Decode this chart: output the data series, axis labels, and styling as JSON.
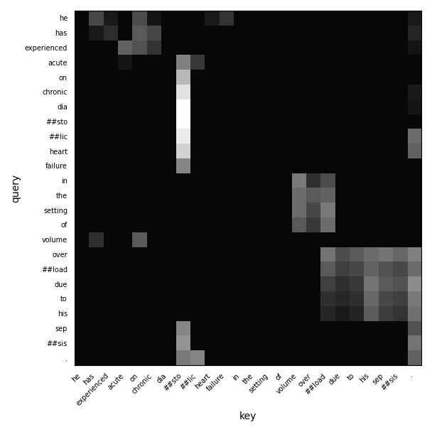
{
  "query_labels": [
    "he",
    "has",
    "experienced",
    "acute",
    "on",
    "chronic",
    "dia",
    "##sto",
    "##lic",
    "heart",
    "failure",
    "in",
    "the",
    "setting",
    "of",
    "volume",
    "over",
    "##load",
    "due",
    "to",
    "his",
    "sep",
    "##sis",
    "."
  ],
  "key_labels": [
    "he",
    "has",
    "experienced",
    "acute",
    "on",
    "chronic",
    "dia",
    "##sto",
    "##lic",
    "heart",
    "failure",
    "in",
    "the",
    "setting",
    "of",
    "volume",
    "over",
    "##load",
    "due",
    "to",
    "his",
    "sep",
    "##sis",
    "."
  ],
  "attention_matrix": [
    [
      0.03,
      0.28,
      0.1,
      0.03,
      0.3,
      0.08,
      0.03,
      0.03,
      0.03,
      0.1,
      0.2,
      0.03,
      0.03,
      0.03,
      0.03,
      0.03,
      0.03,
      0.03,
      0.03,
      0.03,
      0.03,
      0.03,
      0.03,
      0.1
    ],
    [
      0.03,
      0.1,
      0.18,
      0.03,
      0.35,
      0.28,
      0.03,
      0.03,
      0.03,
      0.03,
      0.03,
      0.03,
      0.03,
      0.03,
      0.03,
      0.03,
      0.03,
      0.03,
      0.03,
      0.03,
      0.03,
      0.03,
      0.03,
      0.15
    ],
    [
      0.03,
      0.03,
      0.03,
      0.38,
      0.32,
      0.2,
      0.03,
      0.03,
      0.03,
      0.03,
      0.03,
      0.03,
      0.03,
      0.03,
      0.03,
      0.03,
      0.03,
      0.03,
      0.03,
      0.03,
      0.03,
      0.03,
      0.03,
      0.08
    ],
    [
      0.03,
      0.03,
      0.03,
      0.08,
      0.03,
      0.03,
      0.03,
      0.5,
      0.22,
      0.03,
      0.03,
      0.03,
      0.03,
      0.03,
      0.03,
      0.03,
      0.03,
      0.03,
      0.03,
      0.03,
      0.03,
      0.03,
      0.03,
      0.03
    ],
    [
      0.03,
      0.03,
      0.03,
      0.03,
      0.03,
      0.03,
      0.03,
      0.72,
      0.03,
      0.03,
      0.03,
      0.03,
      0.03,
      0.03,
      0.03,
      0.03,
      0.03,
      0.03,
      0.03,
      0.03,
      0.03,
      0.03,
      0.03,
      0.03
    ],
    [
      0.03,
      0.03,
      0.03,
      0.03,
      0.03,
      0.03,
      0.03,
      0.88,
      0.03,
      0.03,
      0.03,
      0.03,
      0.03,
      0.03,
      0.03,
      0.03,
      0.03,
      0.03,
      0.03,
      0.03,
      0.03,
      0.03,
      0.03,
      0.1
    ],
    [
      0.03,
      0.03,
      0.03,
      0.03,
      0.03,
      0.03,
      0.03,
      1.0,
      0.03,
      0.03,
      0.03,
      0.03,
      0.03,
      0.03,
      0.03,
      0.03,
      0.03,
      0.03,
      0.03,
      0.03,
      0.03,
      0.03,
      0.03,
      0.08
    ],
    [
      0.03,
      0.03,
      0.03,
      0.03,
      0.03,
      0.03,
      0.03,
      1.0,
      0.03,
      0.03,
      0.03,
      0.03,
      0.03,
      0.03,
      0.03,
      0.03,
      0.03,
      0.03,
      0.03,
      0.03,
      0.03,
      0.03,
      0.03,
      0.03
    ],
    [
      0.03,
      0.03,
      0.03,
      0.03,
      0.03,
      0.03,
      0.03,
      0.92,
      0.03,
      0.03,
      0.03,
      0.03,
      0.03,
      0.03,
      0.03,
      0.03,
      0.03,
      0.03,
      0.03,
      0.03,
      0.03,
      0.03,
      0.03,
      0.42
    ],
    [
      0.03,
      0.03,
      0.03,
      0.03,
      0.03,
      0.03,
      0.03,
      0.82,
      0.03,
      0.03,
      0.03,
      0.03,
      0.03,
      0.03,
      0.03,
      0.03,
      0.03,
      0.03,
      0.03,
      0.03,
      0.03,
      0.03,
      0.03,
      0.38
    ],
    [
      0.03,
      0.03,
      0.03,
      0.03,
      0.03,
      0.03,
      0.03,
      0.52,
      0.03,
      0.03,
      0.03,
      0.03,
      0.03,
      0.03,
      0.03,
      0.03,
      0.03,
      0.03,
      0.03,
      0.03,
      0.03,
      0.03,
      0.03,
      0.03
    ],
    [
      0.03,
      0.03,
      0.03,
      0.03,
      0.03,
      0.03,
      0.03,
      0.03,
      0.03,
      0.03,
      0.03,
      0.03,
      0.03,
      0.03,
      0.03,
      0.48,
      0.18,
      0.3,
      0.03,
      0.03,
      0.03,
      0.03,
      0.03,
      0.03
    ],
    [
      0.03,
      0.03,
      0.03,
      0.03,
      0.03,
      0.03,
      0.03,
      0.03,
      0.03,
      0.03,
      0.03,
      0.03,
      0.03,
      0.03,
      0.03,
      0.42,
      0.35,
      0.38,
      0.03,
      0.03,
      0.03,
      0.03,
      0.03,
      0.03
    ],
    [
      0.03,
      0.03,
      0.03,
      0.03,
      0.03,
      0.03,
      0.03,
      0.03,
      0.03,
      0.03,
      0.03,
      0.03,
      0.03,
      0.03,
      0.03,
      0.42,
      0.28,
      0.48,
      0.03,
      0.03,
      0.03,
      0.03,
      0.03,
      0.03
    ],
    [
      0.03,
      0.03,
      0.03,
      0.03,
      0.03,
      0.03,
      0.03,
      0.03,
      0.03,
      0.03,
      0.03,
      0.03,
      0.03,
      0.03,
      0.03,
      0.35,
      0.22,
      0.42,
      0.03,
      0.03,
      0.03,
      0.03,
      0.03,
      0.03
    ],
    [
      0.03,
      0.18,
      0.03,
      0.03,
      0.35,
      0.03,
      0.03,
      0.03,
      0.03,
      0.03,
      0.03,
      0.03,
      0.03,
      0.03,
      0.03,
      0.03,
      0.03,
      0.03,
      0.03,
      0.03,
      0.03,
      0.03,
      0.03,
      0.03
    ],
    [
      0.03,
      0.03,
      0.03,
      0.03,
      0.03,
      0.03,
      0.03,
      0.03,
      0.03,
      0.03,
      0.03,
      0.03,
      0.03,
      0.03,
      0.03,
      0.03,
      0.03,
      0.45,
      0.3,
      0.35,
      0.42,
      0.45,
      0.4,
      0.5
    ],
    [
      0.03,
      0.03,
      0.03,
      0.03,
      0.03,
      0.03,
      0.03,
      0.03,
      0.03,
      0.03,
      0.03,
      0.03,
      0.03,
      0.03,
      0.03,
      0.03,
      0.03,
      0.35,
      0.25,
      0.28,
      0.38,
      0.32,
      0.28,
      0.42
    ],
    [
      0.03,
      0.03,
      0.03,
      0.03,
      0.03,
      0.03,
      0.03,
      0.03,
      0.03,
      0.03,
      0.03,
      0.03,
      0.03,
      0.03,
      0.03,
      0.03,
      0.03,
      0.25,
      0.18,
      0.22,
      0.45,
      0.35,
      0.32,
      0.55
    ],
    [
      0.03,
      0.03,
      0.03,
      0.03,
      0.03,
      0.03,
      0.03,
      0.03,
      0.03,
      0.03,
      0.03,
      0.03,
      0.03,
      0.03,
      0.03,
      0.03,
      0.03,
      0.18,
      0.15,
      0.18,
      0.4,
      0.28,
      0.25,
      0.48
    ],
    [
      0.03,
      0.03,
      0.03,
      0.03,
      0.03,
      0.03,
      0.03,
      0.03,
      0.03,
      0.03,
      0.03,
      0.03,
      0.03,
      0.03,
      0.03,
      0.03,
      0.03,
      0.15,
      0.1,
      0.14,
      0.36,
      0.24,
      0.2,
      0.44
    ],
    [
      0.03,
      0.03,
      0.03,
      0.03,
      0.03,
      0.03,
      0.03,
      0.52,
      0.03,
      0.03,
      0.03,
      0.03,
      0.03,
      0.03,
      0.03,
      0.03,
      0.03,
      0.03,
      0.03,
      0.03,
      0.03,
      0.03,
      0.03,
      0.32
    ],
    [
      0.03,
      0.03,
      0.03,
      0.03,
      0.03,
      0.03,
      0.03,
      0.58,
      0.03,
      0.03,
      0.03,
      0.03,
      0.03,
      0.03,
      0.03,
      0.03,
      0.03,
      0.03,
      0.03,
      0.03,
      0.03,
      0.03,
      0.03,
      0.45
    ],
    [
      0.03,
      0.03,
      0.03,
      0.03,
      0.03,
      0.03,
      0.03,
      0.48,
      0.52,
      0.03,
      0.03,
      0.03,
      0.03,
      0.03,
      0.03,
      0.03,
      0.03,
      0.03,
      0.03,
      0.03,
      0.03,
      0.03,
      0.03,
      0.38
    ]
  ],
  "title": "",
  "xlabel": "key",
  "ylabel": "query",
  "cmap": "gray",
  "figsize": [
    6.08,
    6.08
  ],
  "dpi": 100
}
